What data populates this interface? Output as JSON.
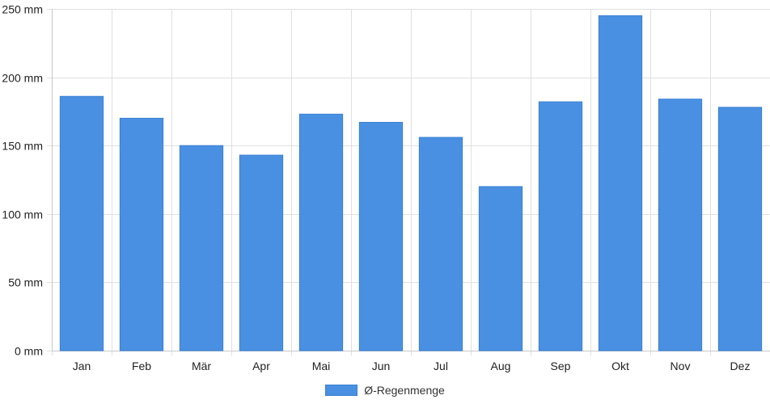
{
  "chart_data": {
    "type": "bar",
    "categories": [
      "Jan",
      "Feb",
      "Mär",
      "Apr",
      "Mai",
      "Jun",
      "Jul",
      "Aug",
      "Sep",
      "Okt",
      "Nov",
      "Dez"
    ],
    "series": [
      {
        "name": "Ø-Regenmenge",
        "values": [
          186,
          170,
          150,
          143,
          173,
          167,
          156,
          120,
          182,
          245,
          184,
          178
        ],
        "color": "#4a90e2"
      }
    ],
    "title": "",
    "xlabel": "",
    "ylabel": "",
    "ylim": [
      0,
      250
    ],
    "yticks": [
      "0 mm",
      "50 mm",
      "100 mm",
      "150 mm",
      "200 mm",
      "250 mm"
    ],
    "grid": true,
    "legend_position": "bottom"
  }
}
